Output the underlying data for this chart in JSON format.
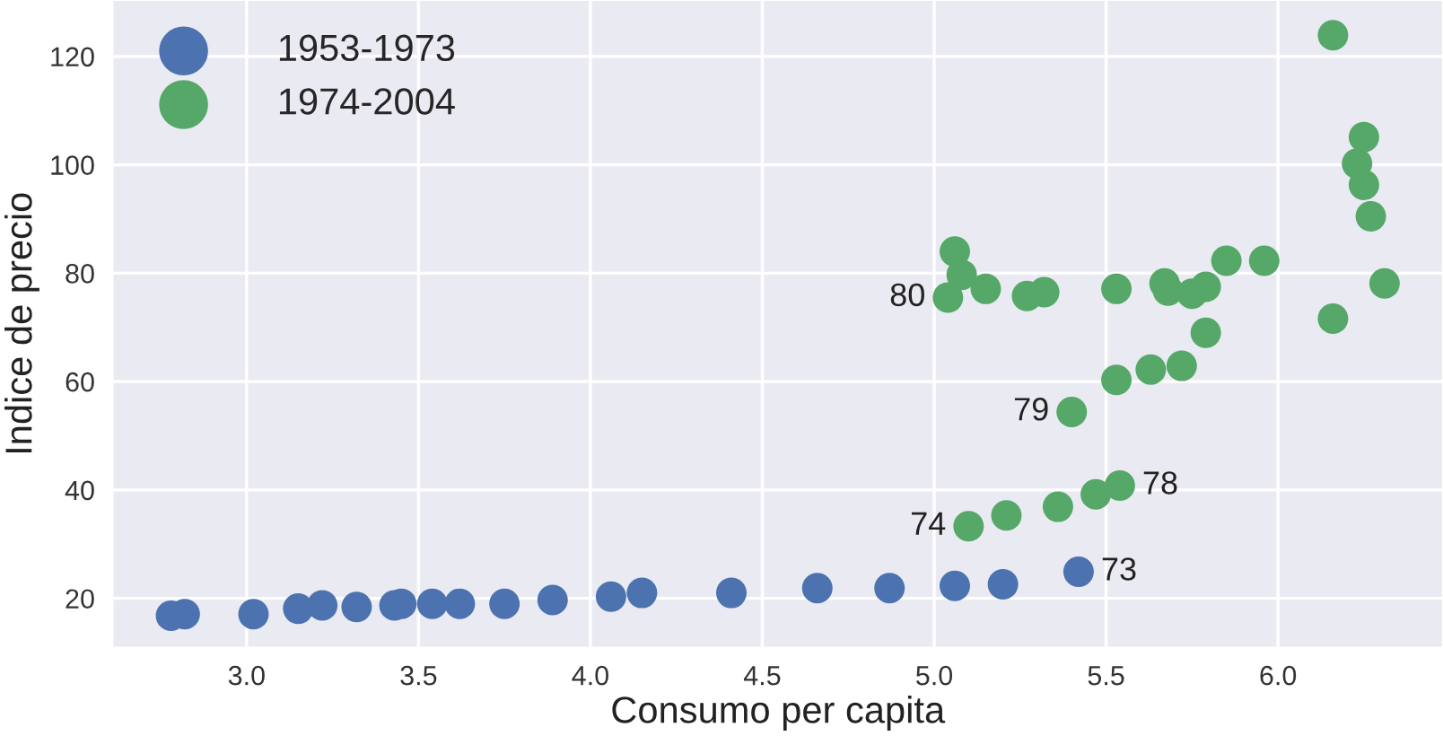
{
  "chart_data": {
    "type": "scatter",
    "xlabel": "Consumo per capita",
    "ylabel": "Indice de precio",
    "xlim": [
      2.61,
      6.48
    ],
    "ylim": [
      10.9,
      130.4
    ],
    "xticks": [
      {
        "value": 3,
        "label": "3.0"
      },
      3.5,
      {
        "value": 4,
        "label": "4.0"
      },
      4.5,
      {
        "value": 5,
        "label": "5.0"
      },
      5.5,
      {
        "value": 6,
        "label": "6.0"
      }
    ],
    "yticks": [
      20,
      40,
      60,
      80,
      100,
      120
    ],
    "grid": true,
    "legend": "top left",
    "marker": "circle",
    "series": [
      {
        "name": "1953-1973",
        "color": "#4c72b0",
        "x": [
          2.78,
          2.82,
          3.02,
          3.15,
          3.22,
          3.32,
          3.43,
          3.45,
          3.54,
          3.62,
          3.75,
          3.89,
          4.06,
          4.15,
          4.41,
          4.66,
          4.87,
          5.06,
          5.2,
          5.42
        ],
        "values": [
          16.8,
          17.1,
          17.1,
          18.1,
          18.7,
          18.4,
          18.7,
          19.0,
          19.0,
          19.0,
          19.0,
          19.7,
          20.3,
          21.0,
          21.0,
          21.9,
          21.9,
          22.3,
          22.6,
          24.9
        ]
      },
      {
        "name": "1974-2004",
        "color": "#55a868",
        "x": [
          5.1,
          5.21,
          5.36,
          5.47,
          5.54,
          5.4,
          5.53,
          5.63,
          5.72,
          5.79,
          5.04,
          5.06,
          5.08,
          5.15,
          5.27,
          5.32,
          5.53,
          5.67,
          5.68,
          5.75,
          5.79,
          5.85,
          5.96,
          6.16,
          6.16,
          6.23,
          6.25,
          6.25,
          6.27,
          6.31
        ],
        "values": [
          33.3,
          35.3,
          36.9,
          39.2,
          40.8,
          54.4,
          60.3,
          62.2,
          62.9,
          69.0,
          75.5,
          84.0,
          79.7,
          77.1,
          75.8,
          76.5,
          77.1,
          78.1,
          76.8,
          76.2,
          77.5,
          82.3,
          82.3,
          71.6,
          123.9,
          100.2,
          105.1,
          96.3,
          90.5,
          78.1
        ]
      }
    ],
    "annotations": [
      {
        "text": "73",
        "x": 5.42,
        "y": 24.9
      },
      {
        "text": "74",
        "x": 5.1,
        "y": 33.3
      },
      {
        "text": "78",
        "x": 5.54,
        "y": 40.8
      },
      {
        "text": "79",
        "x": 5.4,
        "y": 54.4
      },
      {
        "text": "80",
        "x": 5.04,
        "y": 75.5
      }
    ]
  }
}
